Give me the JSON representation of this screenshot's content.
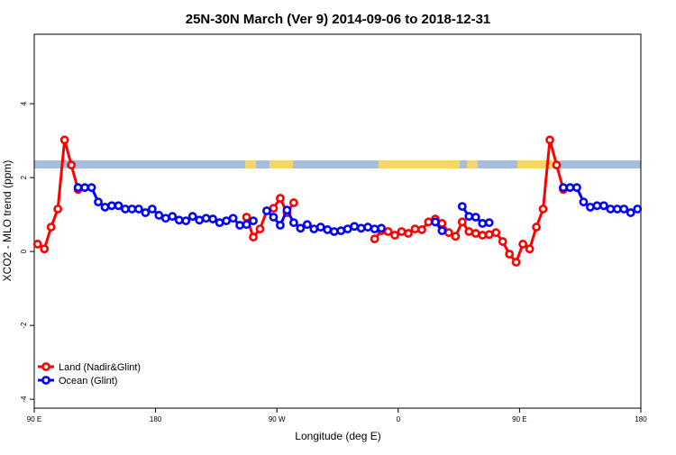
{
  "chart_data": {
    "type": "line",
    "title": "25N-30N March (Ver 9)   2014-09-06 to 2018-12-31",
    "x_label": "Longitude (deg E)",
    "y_label": "XCO2 - MLO trend (ppm)",
    "xlim": [
      90,
      540
    ],
    "xticks": [
      {
        "value": 90,
        "label": "90 E"
      },
      180,
      {
        "value": 270,
        "label": "90 W"
      },
      {
        "value": 360,
        "label": "0"
      },
      {
        "value": 450,
        "label": "90 E"
      },
      {
        "value": 540,
        "label": "180"
      }
    ],
    "ylim": [
      -4.24,
      5.88
    ],
    "yticks": [
      -4,
      -2,
      0,
      2,
      4
    ],
    "legend": "bottom-left",
    "x": [
      92.5,
      97.5,
      102.5,
      107.5,
      112.5,
      117.5,
      122.5,
      127.5,
      132.5,
      137.5,
      142.5,
      147.5,
      152.5,
      157.5,
      162.5,
      167.5,
      172.5,
      177.5,
      182.5,
      187.5,
      192.5,
      197.5,
      202.5,
      207.5,
      212.5,
      217.5,
      222.5,
      227.5,
      232.5,
      237.5,
      242.5,
      247.5,
      252.5,
      257.5,
      262.5,
      267.5,
      272.5,
      277.5,
      282.5,
      287.5,
      292.5,
      297.5,
      302.5,
      307.5,
      312.5,
      317.5,
      322.5,
      327.5,
      332.5,
      337.5,
      342.5,
      347.5,
      352.5,
      357.5,
      362.5,
      367.5,
      372.5,
      377.5,
      382.5,
      387.5,
      392.5,
      397.5,
      402.5,
      407.5,
      412.5,
      417.5,
      422.5,
      427.5,
      432.5,
      437.5,
      442.5,
      447.5,
      452.5,
      457.5,
      462.5,
      467.5,
      472.5,
      477.5,
      482.5,
      487.5,
      492.5,
      497.5,
      502.5,
      507.5,
      512.5,
      517.5,
      522.5,
      527.5,
      532.5,
      537.5
    ],
    "series": [
      {
        "name": "Land (Nadir&Glint)",
        "color": "#ff0000",
        "values": [
          0.2,
          0.07,
          0.66,
          1.15,
          3.02,
          2.34,
          1.68,
          null,
          null,
          null,
          null,
          null,
          null,
          null,
          null,
          null,
          null,
          null,
          null,
          null,
          null,
          null,
          null,
          null,
          null,
          null,
          null,
          null,
          null,
          null,
          null,
          0.93,
          0.39,
          0.61,
          1.1,
          1.17,
          1.44,
          1.05,
          1.32,
          null,
          null,
          null,
          null,
          null,
          null,
          null,
          null,
          null,
          null,
          null,
          0.34,
          0.56,
          0.54,
          0.44,
          0.54,
          0.49,
          0.61,
          0.59,
          0.8,
          0.88,
          0.76,
          0.51,
          0.41,
          0.8,
          0.54,
          0.49,
          0.44,
          0.46,
          0.51,
          0.27,
          -0.07,
          -0.29,
          0.2,
          0.07,
          0.66,
          1.15,
          3.02,
          2.34,
          1.68,
          null,
          null,
          null,
          null,
          null,
          null,
          null,
          null,
          null,
          null,
          null
        ]
      },
      {
        "name": "Ocean (Glint)",
        "color": "#0000ff",
        "values": [
          null,
          null,
          null,
          null,
          null,
          null,
          1.73,
          1.73,
          1.73,
          1.34,
          1.2,
          1.24,
          1.24,
          1.15,
          1.15,
          1.15,
          1.05,
          1.15,
          0.98,
          0.9,
          0.95,
          0.85,
          0.83,
          0.95,
          0.85,
          0.9,
          0.88,
          0.78,
          0.83,
          0.9,
          0.71,
          0.73,
          0.83,
          null,
          1.1,
          0.93,
          0.71,
          1.12,
          0.78,
          0.63,
          0.73,
          0.61,
          0.66,
          0.59,
          0.54,
          0.56,
          0.61,
          0.68,
          0.63,
          0.66,
          0.61,
          0.63,
          null,
          null,
          null,
          null,
          null,
          null,
          null,
          0.8,
          0.56,
          null,
          null,
          1.22,
          0.95,
          0.93,
          0.76,
          0.78,
          null,
          null,
          null,
          null,
          null,
          null,
          null,
          null,
          null,
          null,
          1.73,
          1.73,
          1.73,
          1.34,
          1.2,
          1.24,
          1.24,
          1.15,
          1.15,
          1.15,
          1.05,
          1.15
        ]
      }
    ]
  }
}
